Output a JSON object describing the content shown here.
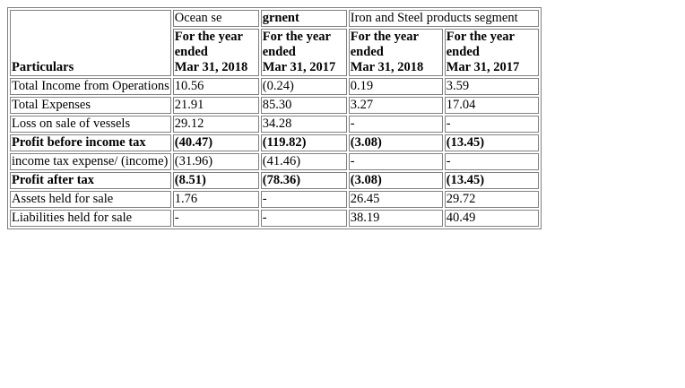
{
  "header": {
    "particulars": "Particulars",
    "segment_ocean_left": "Ocean se",
    "segment_ocean_right": "grnent",
    "segment_iron": "Iron and Steel products segment",
    "columns": [
      {
        "line1": "For the year",
        "line2": "ended",
        "line3": "Mar 31, 2018"
      },
      {
        "line1": "For the year",
        "line2": "ended",
        "line3": "Mar 31, 2017"
      },
      {
        "line1": "For the year",
        "line2": "ended",
        "line3": "Mar 31, 2018"
      },
      {
        "line1": "For the year",
        "line2": "ended",
        "line3": "Mar 31, 2017"
      }
    ]
  },
  "rows": [
    {
      "label": "Total Income from Operations",
      "values": [
        "10.56",
        "(0.24)",
        "0.19",
        "3.59"
      ],
      "bold": false
    },
    {
      "label": "Total Expenses",
      "values": [
        "21.91",
        "85.30",
        "3.27",
        "17.04"
      ],
      "bold": false
    },
    {
      "label": "Loss on sale of vessels",
      "values": [
        "29.12",
        "34.28",
        "-",
        "-"
      ],
      "bold": false
    },
    {
      "label": "Profit before income tax",
      "values": [
        "(40.47)",
        "(119.82)",
        "(3.08)",
        "(13.45)"
      ],
      "bold": true
    },
    {
      "label": "income tax expense/ (income)",
      "values": [
        "(31.96)",
        "(41.46)",
        "-",
        "-"
      ],
      "bold": false
    },
    {
      "label": "Profit after tax",
      "values": [
        "(8.51)",
        "(78.36)",
        "(3.08)",
        "(13.45)"
      ],
      "bold": true
    },
    {
      "label": "Assets held for sale",
      "values": [
        "1.76",
        "-",
        "26.45",
        "29.72"
      ],
      "bold": false
    },
    {
      "label": "Liabilities held for sale",
      "values": [
        "-",
        "-",
        "38.19",
        "40.49"
      ],
      "bold": false
    }
  ]
}
